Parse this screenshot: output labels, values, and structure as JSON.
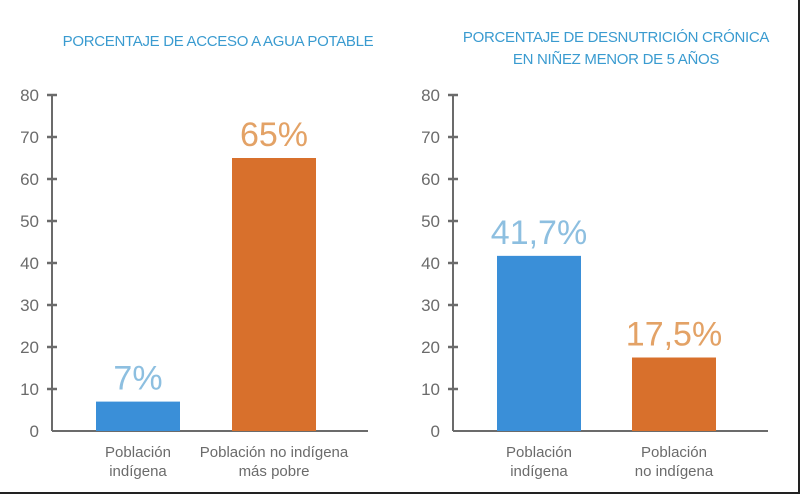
{
  "colors": {
    "title": "#3a9bd0",
    "axis": "#6b6b6b",
    "blue_bar": "#3a8fd8",
    "orange_bar": "#d8702c",
    "blue_label": "#8dbfe0",
    "orange_label": "#e3a266"
  },
  "chart_data": [
    {
      "type": "bar",
      "title": "PORCENTAJE DE ACCESO A AGUA POTABLE",
      "title_lines": [
        "PORCENTAJE DE ACCESO A AGUA POTABLE"
      ],
      "xlabel": "",
      "ylabel": "",
      "ylim": [
        0,
        80
      ],
      "yticks": [
        0,
        10,
        20,
        30,
        40,
        50,
        60,
        70,
        80
      ],
      "grid": false,
      "categories": [
        "Población indígena",
        "Población no indígena más pobre"
      ],
      "category_lines": [
        [
          "Población",
          "indígena"
        ],
        [
          "Población no indígena",
          "más pobre"
        ]
      ],
      "values": [
        7,
        65
      ],
      "data_labels": [
        "7%",
        "65%"
      ],
      "bar_colors": [
        "blue",
        "orange"
      ]
    },
    {
      "type": "bar",
      "title": "PORCENTAJE DE DESNUTRICIÓN CRÓNICA EN NIÑEZ MENOR DE 5 AÑOS",
      "title_lines": [
        "PORCENTAJE DE DESNUTRICIÓN CRÓNICA",
        "EN NIÑEZ MENOR DE 5 AÑOS"
      ],
      "xlabel": "",
      "ylabel": "",
      "ylim": [
        0,
        80
      ],
      "yticks": [
        0,
        10,
        20,
        30,
        40,
        50,
        60,
        70,
        80
      ],
      "grid": false,
      "categories": [
        "Población indígena",
        "Población no indígena"
      ],
      "category_lines": [
        [
          "Población",
          "indígena"
        ],
        [
          "Población",
          "no indígena"
        ]
      ],
      "values": [
        41.7,
        17.5
      ],
      "data_labels": [
        "41,7%",
        "17,5%"
      ],
      "bar_colors": [
        "blue",
        "orange"
      ]
    }
  ]
}
